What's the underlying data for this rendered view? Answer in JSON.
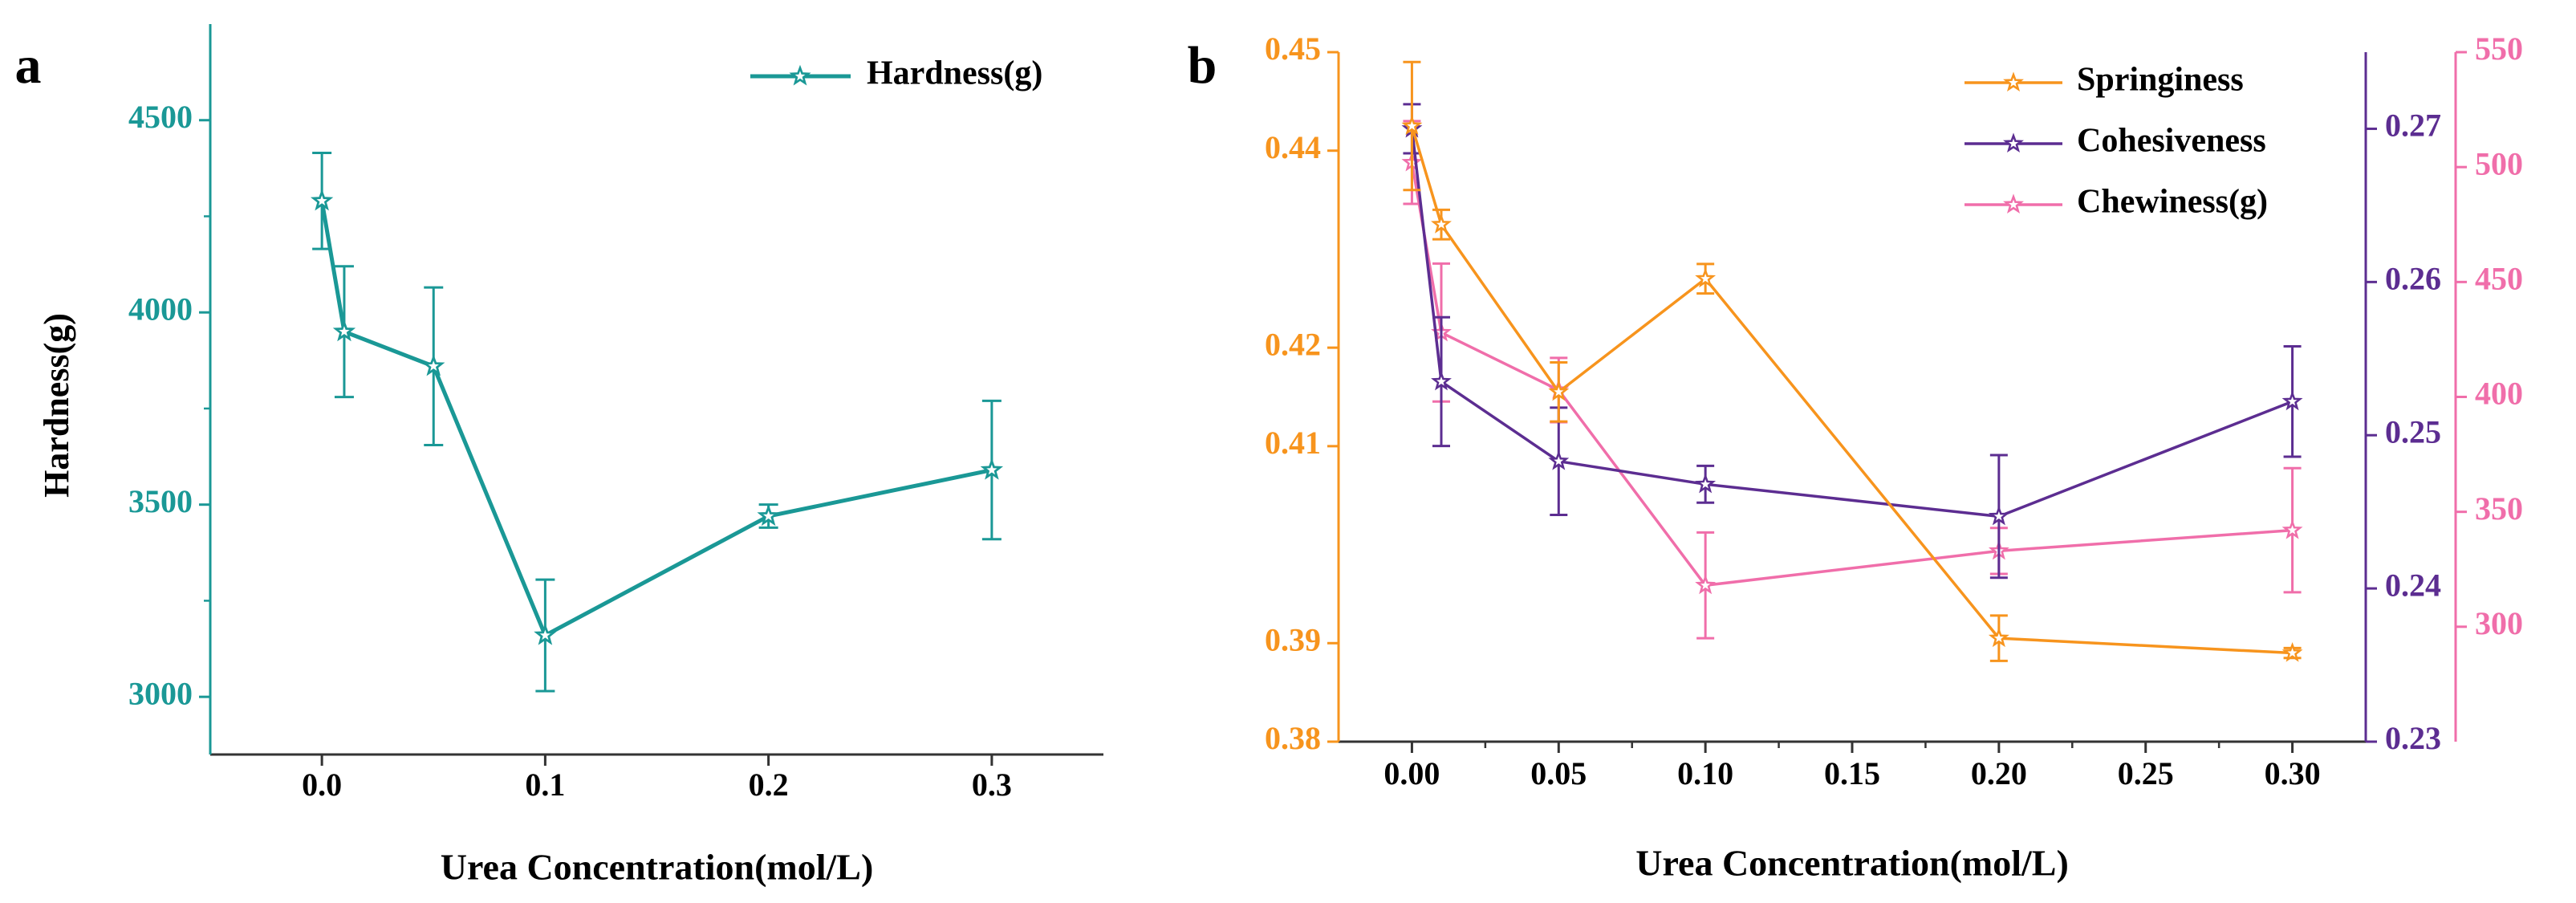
{
  "chart_data": [
    {
      "panel_label": "a",
      "type": "line",
      "title": "",
      "xlabel": "Urea Concentration(mol/L)",
      "ylabel": "Hardness(g)",
      "xlim": [
        -0.05,
        0.35
      ],
      "ylim": [
        2850,
        4750
      ],
      "xticks": [
        0.0,
        0.1,
        0.2,
        0.3
      ],
      "xtick_labels": [
        "0.0",
        "0.1",
        "0.2",
        "0.3"
      ],
      "yticks": [
        3000,
        3500,
        4000,
        4500
      ],
      "ytick_labels": [
        "3000",
        "3500",
        "4000",
        "4500"
      ],
      "grid": false,
      "legend_position": "top-right",
      "series": [
        {
          "name": "Hardness(g)",
          "color": "#1a9896",
          "axis": "left",
          "x": [
            0.0,
            0.01,
            0.05,
            0.1,
            0.2,
            0.3
          ],
          "values": [
            4290,
            3950,
            3860,
            3160,
            3470,
            3590
          ],
          "errors": [
            125,
            170,
            205,
            145,
            30,
            180
          ]
        }
      ]
    },
    {
      "panel_label": "b",
      "type": "line",
      "title": "",
      "xlabel": "Urea Concentration(mol/L)",
      "xlim": [
        -0.025,
        0.325
      ],
      "xticks": [
        0.0,
        0.05,
        0.1,
        0.15,
        0.2,
        0.25,
        0.3
      ],
      "xtick_labels": [
        "0.00",
        "0.05",
        "0.10",
        "0.15",
        "0.20",
        "0.25",
        "0.30"
      ],
      "grid": false,
      "legend_position": "top-right",
      "axes": {
        "left": {
          "color": "#f7941d",
          "ylim": [
            0.38,
            0.45
          ],
          "ticks": [
            0.38,
            0.39,
            0.41,
            0.42,
            0.44,
            0.45
          ],
          "tick_labels": [
            "0.38",
            "0.39",
            "0.41",
            "0.42",
            "0.44",
            "0.45"
          ]
        },
        "right1": {
          "color": "#5c2d91",
          "ylim": [
            0.23,
            0.275
          ],
          "ticks": [
            0.23,
            0.24,
            0.25,
            0.26,
            0.27
          ],
          "tick_labels": [
            "0.23",
            "0.24",
            "0.25",
            "0.26",
            "0.27"
          ]
        },
        "right2": {
          "color": "#f06eaa",
          "ylim": [
            250,
            550
          ],
          "ticks": [
            300,
            350,
            400,
            450,
            500,
            550
          ],
          "tick_labels": [
            "300",
            "350",
            "400",
            "450",
            "500",
            "550"
          ]
        }
      },
      "series": [
        {
          "name": "Springiness",
          "color": "#f7941d",
          "axis": "left",
          "x": [
            0.0,
            0.01,
            0.05,
            0.1,
            0.2,
            0.3
          ],
          "values": [
            0.4425,
            0.4325,
            0.4155,
            0.427,
            0.3905,
            0.389
          ],
          "errors": [
            0.0065,
            0.0015,
            0.003,
            0.0015,
            0.0023,
            0.0005
          ]
        },
        {
          "name": "Cohesiveness",
          "color": "#5c2d91",
          "axis": "right1",
          "x": [
            0.0,
            0.01,
            0.05,
            0.1,
            0.2,
            0.3
          ],
          "values": [
            0.27,
            0.2535,
            0.2483,
            0.2468,
            0.2447,
            0.2522
          ],
          "errors": [
            0.0016,
            0.0042,
            0.0035,
            0.0012,
            0.004,
            0.0036
          ]
        },
        {
          "name": "Chewiness(g)",
          "color": "#f06eaa",
          "axis": "right2",
          "x": [
            0.0,
            0.01,
            0.05,
            0.1,
            0.2,
            0.3
          ],
          "values": [
            502,
            428,
            403,
            318,
            333,
            342
          ],
          "errors": [
            18,
            30,
            14,
            23,
            10,
            27
          ]
        }
      ]
    }
  ]
}
